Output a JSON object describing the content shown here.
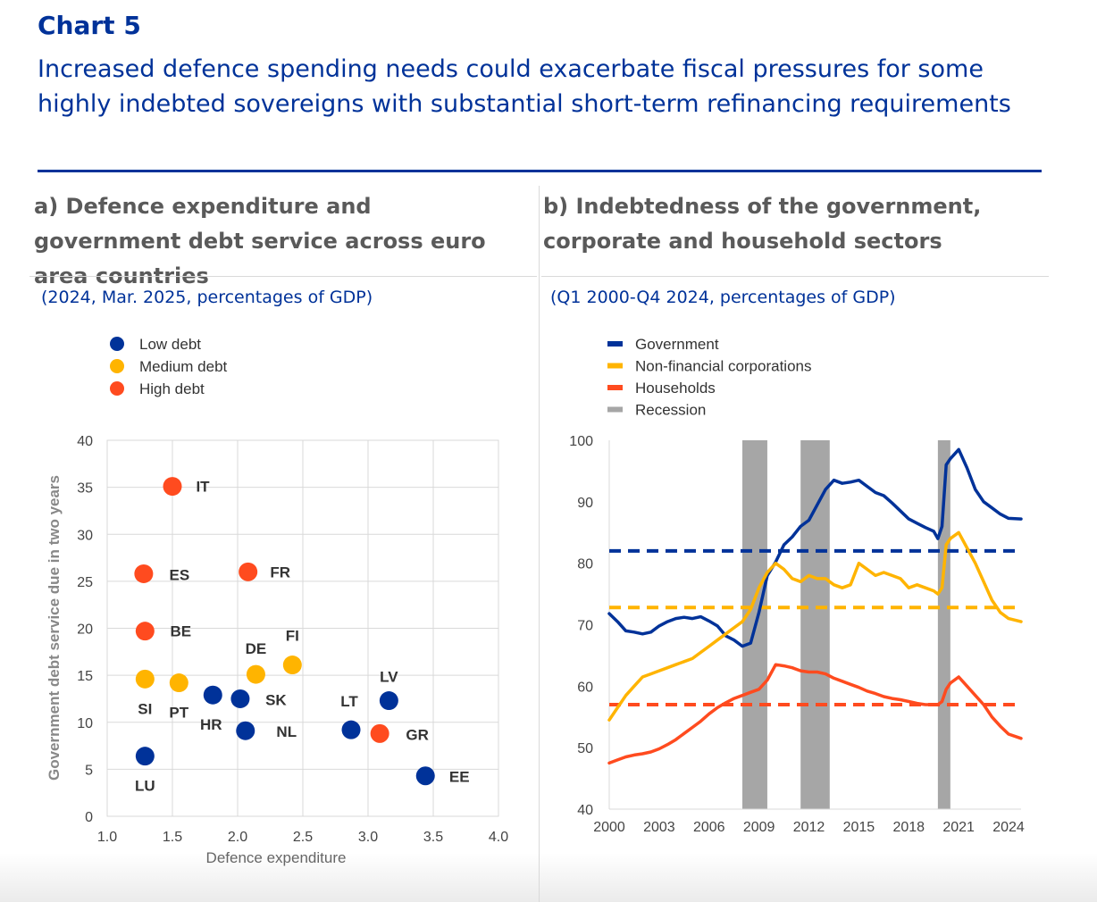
{
  "header": {
    "chart_label": "Chart 5",
    "title": "Increased defence spending needs could exacerbate fiscal pressures for some highly indebted sovereigns with substantial short-term refinancing requirements"
  },
  "colors": {
    "title_blue": "#003299",
    "low_debt": "#003299",
    "medium_debt": "#FFB400",
    "high_debt": "#FF4B1F",
    "recession": "#A6A6A6"
  },
  "panel_a": {
    "title": "a) Defence expenditure and government debt service across euro area countries",
    "subtitle": "(2024, Mar. 2025, percentages of GDP)"
  },
  "panel_b": {
    "title": "b) Indebtedness of the government, corporate and household sectors",
    "subtitle": "(Q1 2000-Q4 2024, percentages of GDP)"
  },
  "chart_data": [
    {
      "type": "scatter",
      "title": "a) Defence expenditure and government debt service across euro area countries",
      "xlabel": "Defence expenditure",
      "ylabel": "Government debt service due in two years",
      "xlim": [
        1.0,
        4.0
      ],
      "ylim": [
        0,
        40
      ],
      "xticks": [
        "1.0",
        "1.5",
        "2.0",
        "2.5",
        "3.0",
        "3.5",
        "4.0"
      ],
      "yticks": [
        "0",
        "5",
        "10",
        "15",
        "20",
        "25",
        "30",
        "35",
        "40"
      ],
      "legend": [
        {
          "key": "low",
          "label": "Low debt"
        },
        {
          "key": "medium",
          "label": "Medium debt"
        },
        {
          "key": "high",
          "label": "High debt"
        }
      ],
      "points": [
        {
          "label": "IT",
          "x": 1.5,
          "y": 35.1,
          "group": "high"
        },
        {
          "label": "ES",
          "x": 1.28,
          "y": 25.8,
          "group": "high"
        },
        {
          "label": "FR",
          "x": 2.08,
          "y": 26.0,
          "group": "high"
        },
        {
          "label": "BE",
          "x": 1.29,
          "y": 19.7,
          "group": "high"
        },
        {
          "label": "GR",
          "x": 3.09,
          "y": 8.8,
          "group": "high"
        },
        {
          "label": "SI",
          "x": 1.29,
          "y": 14.6,
          "group": "medium"
        },
        {
          "label": "PT",
          "x": 1.55,
          "y": 14.2,
          "group": "medium"
        },
        {
          "label": "DE",
          "x": 2.14,
          "y": 15.1,
          "group": "medium"
        },
        {
          "label": "FI",
          "x": 2.42,
          "y": 16.1,
          "group": "medium"
        },
        {
          "label": "HR",
          "x": 1.81,
          "y": 12.9,
          "group": "low"
        },
        {
          "label": "SK",
          "x": 2.02,
          "y": 12.5,
          "group": "low"
        },
        {
          "label": "NL",
          "x": 2.06,
          "y": 9.1,
          "group": "low"
        },
        {
          "label": "LT",
          "x": 2.87,
          "y": 9.2,
          "group": "low"
        },
        {
          "label": "LV",
          "x": 3.16,
          "y": 12.3,
          "group": "low"
        },
        {
          "label": "LU",
          "x": 1.29,
          "y": 6.4,
          "group": "low"
        },
        {
          "label": "EE",
          "x": 3.44,
          "y": 4.3,
          "group": "low"
        }
      ]
    },
    {
      "type": "line",
      "title": "b) Indebtedness of the government, corporate and household sectors",
      "xlim": [
        2000.0,
        2024.75
      ],
      "ylim": [
        40,
        100
      ],
      "xticks": [
        "2000",
        "2003",
        "2006",
        "2009",
        "2012",
        "2015",
        "2018",
        "2021",
        "2024"
      ],
      "yticks": [
        "40",
        "50",
        "60",
        "70",
        "80",
        "90",
        "100"
      ],
      "legend": [
        "Government",
        "Non-financial corporations",
        "Households",
        "Recession"
      ],
      "recessions": [
        [
          2008.0,
          2009.5
        ],
        [
          2011.5,
          2013.25
        ],
        [
          2019.75,
          2020.5
        ]
      ],
      "series": [
        {
          "name": "Government",
          "color": "#003299",
          "average": 82.0,
          "x": [
            2000.0,
            2000.5,
            2001.0,
            2001.5,
            2002.0,
            2002.5,
            2003.0,
            2003.5,
            2004.0,
            2004.5,
            2005.0,
            2005.5,
            2006.0,
            2006.5,
            2007.0,
            2007.5,
            2008.0,
            2008.5,
            2009.0,
            2009.5,
            2010.0,
            2010.5,
            2011.0,
            2011.5,
            2012.0,
            2012.5,
            2013.0,
            2013.5,
            2014.0,
            2014.5,
            2015.0,
            2015.5,
            2016.0,
            2016.5,
            2017.0,
            2017.5,
            2018.0,
            2018.5,
            2019.0,
            2019.5,
            2019.75,
            2020.0,
            2020.25,
            2020.5,
            2021.0,
            2021.5,
            2022.0,
            2022.5,
            2023.0,
            2023.5,
            2024.0,
            2024.75
          ],
          "values": [
            71.8,
            70.5,
            69.0,
            68.8,
            68.5,
            68.8,
            69.8,
            70.5,
            71.0,
            71.2,
            71.0,
            71.3,
            70.6,
            69.8,
            68.2,
            67.5,
            66.5,
            67.0,
            72.0,
            78.0,
            80.2,
            83.0,
            84.3,
            86.0,
            87.0,
            89.5,
            92.0,
            93.5,
            93.0,
            93.2,
            93.5,
            92.5,
            91.5,
            91.0,
            89.8,
            88.5,
            87.2,
            86.5,
            85.8,
            85.2,
            84.0,
            86.0,
            96.0,
            97.0,
            98.5,
            95.5,
            92.0,
            90.0,
            89.0,
            88.0,
            87.3,
            87.2
          ]
        },
        {
          "name": "Non-financial corporations",
          "color": "#FFB400",
          "average": 72.8,
          "x": [
            2000.0,
            2000.5,
            2001.0,
            2001.5,
            2002.0,
            2002.5,
            2003.0,
            2003.5,
            2004.0,
            2004.5,
            2005.0,
            2005.5,
            2006.0,
            2006.5,
            2007.0,
            2007.5,
            2008.0,
            2008.5,
            2009.0,
            2009.5,
            2010.0,
            2010.5,
            2011.0,
            2011.5,
            2012.0,
            2012.5,
            2013.0,
            2013.5,
            2014.0,
            2014.5,
            2015.0,
            2015.5,
            2016.0,
            2016.5,
            2017.0,
            2017.5,
            2018.0,
            2018.5,
            2019.0,
            2019.5,
            2019.75,
            2020.0,
            2020.25,
            2020.5,
            2021.0,
            2021.5,
            2022.0,
            2022.5,
            2023.0,
            2023.5,
            2024.0,
            2024.75
          ],
          "values": [
            54.5,
            56.5,
            58.5,
            60.0,
            61.5,
            62.0,
            62.5,
            63.0,
            63.5,
            64.0,
            64.5,
            65.5,
            66.5,
            67.5,
            68.5,
            69.5,
            70.5,
            72.5,
            76.0,
            78.5,
            80.0,
            79.0,
            77.5,
            77.0,
            78.0,
            77.5,
            77.5,
            76.5,
            76.0,
            76.5,
            80.0,
            79.0,
            78.0,
            78.5,
            78.0,
            77.5,
            76.0,
            76.5,
            76.0,
            75.5,
            75.0,
            76.0,
            83.0,
            84.0,
            85.0,
            82.5,
            80.0,
            77.0,
            74.0,
            72.0,
            71.0,
            70.5
          ]
        },
        {
          "name": "Households",
          "color": "#FF4B1F",
          "average": 57.0,
          "x": [
            2000.0,
            2000.5,
            2001.0,
            2001.5,
            2002.0,
            2002.5,
            2003.0,
            2003.5,
            2004.0,
            2004.5,
            2005.0,
            2005.5,
            2006.0,
            2006.5,
            2007.0,
            2007.5,
            2008.0,
            2008.5,
            2009.0,
            2009.5,
            2010.0,
            2010.5,
            2011.0,
            2011.5,
            2012.0,
            2012.5,
            2013.0,
            2013.5,
            2014.0,
            2014.5,
            2015.0,
            2015.5,
            2016.0,
            2016.5,
            2017.0,
            2017.5,
            2018.0,
            2018.5,
            2019.0,
            2019.5,
            2019.75,
            2020.0,
            2020.25,
            2020.5,
            2021.0,
            2021.5,
            2022.0,
            2022.5,
            2023.0,
            2023.5,
            2024.0,
            2024.75
          ],
          "values": [
            47.5,
            48.0,
            48.5,
            48.8,
            49.0,
            49.3,
            49.8,
            50.5,
            51.3,
            52.3,
            53.3,
            54.3,
            55.5,
            56.5,
            57.3,
            58.0,
            58.5,
            59.0,
            59.5,
            61.0,
            63.5,
            63.3,
            63.0,
            62.5,
            62.3,
            62.3,
            62.0,
            61.3,
            60.8,
            60.3,
            59.8,
            59.2,
            58.8,
            58.3,
            58.0,
            57.8,
            57.5,
            57.2,
            57.0,
            57.0,
            57.0,
            57.5,
            59.5,
            60.5,
            61.5,
            60.0,
            58.5,
            57.0,
            55.0,
            53.5,
            52.2,
            51.5
          ]
        }
      ]
    }
  ]
}
